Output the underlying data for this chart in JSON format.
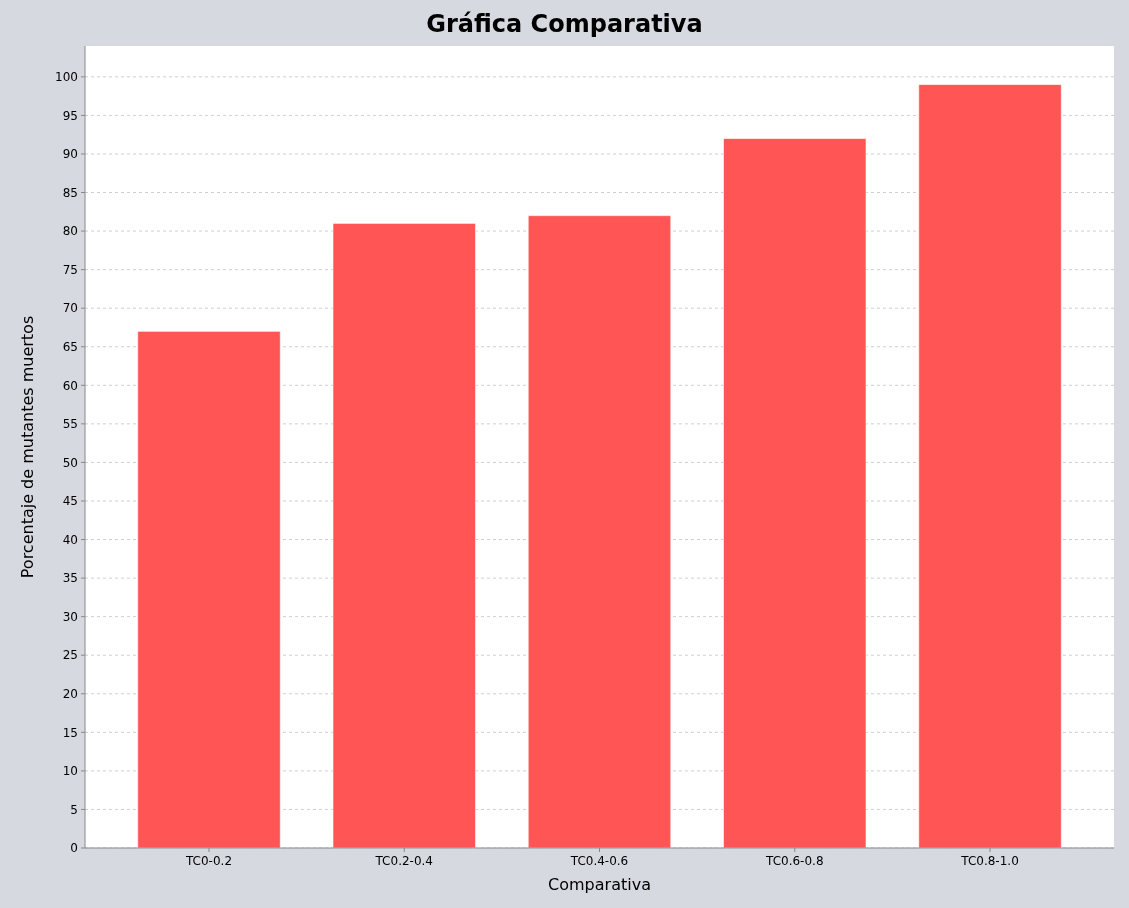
{
  "chart_data": {
    "type": "bar",
    "title": "Gráfica Comparativa",
    "xlabel": "Comparativa",
    "ylabel": "Porcentaje de mutantes muertos",
    "categories": [
      "TC0-0.2",
      "TC0.2-0.4",
      "TC0.4-0.6",
      "TC0.6-0.8",
      "TC0.8-1.0"
    ],
    "values": [
      67,
      81,
      82,
      92,
      99
    ],
    "color": "#ff5555",
    "ylim": [
      0,
      104
    ],
    "yticks": [
      0,
      5,
      10,
      15,
      20,
      25,
      30,
      35,
      40,
      45,
      50,
      55,
      60,
      65,
      70,
      75,
      80,
      85,
      90,
      95,
      100
    ],
    "grid": "y"
  }
}
